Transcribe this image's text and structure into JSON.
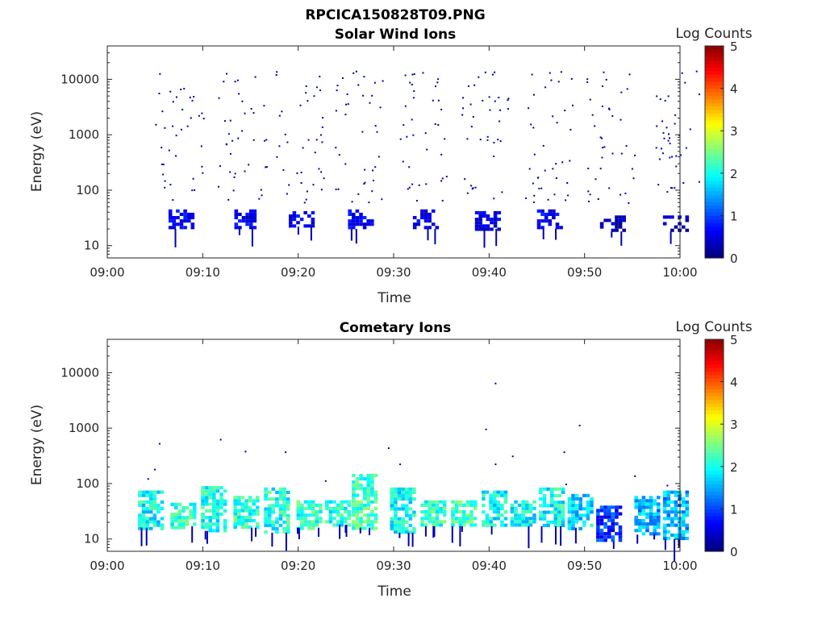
{
  "figure": {
    "title": "RPCICA150828T09.PNG"
  },
  "chart_data": [
    {
      "type": "heatmap",
      "title": "Solar Wind Ions",
      "xlabel": "Time",
      "ylabel": "Energy (eV)",
      "colorbar_label": "Log Counts",
      "x_ticks": [
        "09:00",
        "09:10",
        "09:20",
        "09:30",
        "09:40",
        "09:50",
        "10:00"
      ],
      "y_ticks": [
        "10",
        "100",
        "1000",
        "10000"
      ],
      "y_scale": "log",
      "ylim": [
        6,
        40000
      ],
      "xlim_minutes": [
        0,
        60
      ],
      "clim": [
        0,
        5
      ],
      "cbar_ticks": [
        "0",
        "1",
        "2",
        "3",
        "4",
        "5"
      ],
      "colormap": "jet",
      "scan_minutes": [
        7.6,
        14.1,
        20.2,
        26.4,
        33.2,
        39.7,
        46.2,
        52.8,
        59.4
      ],
      "sweeps": [
        {
          "t": 7.6,
          "lo": 20,
          "hi": 45,
          "lvl": 0.6
        },
        {
          "t": 14.1,
          "lo": 20,
          "hi": 45,
          "lvl": 0.6
        },
        {
          "t": 20.2,
          "lo": 22,
          "hi": 42,
          "lvl": 0.5
        },
        {
          "t": 26.4,
          "lo": 20,
          "hi": 45,
          "lvl": 0.6
        },
        {
          "t": 33.2,
          "lo": 20,
          "hi": 45,
          "lvl": 0.6
        },
        {
          "t": 39.7,
          "lo": 20,
          "hi": 42,
          "lvl": 0.5
        },
        {
          "t": 46.2,
          "lo": 20,
          "hi": 45,
          "lvl": 0.6
        },
        {
          "t": 52.8,
          "lo": 18,
          "hi": 35,
          "lvl": 0.3
        },
        {
          "t": 59.4,
          "lo": 18,
          "hi": 35,
          "lvl": 0.3
        }
      ]
    },
    {
      "type": "heatmap",
      "title": "Cometary Ions",
      "xlabel": "Time",
      "ylabel": "Energy (eV)",
      "colorbar_label": "Log Counts",
      "x_ticks": [
        "09:00",
        "09:10",
        "09:20",
        "09:30",
        "09:40",
        "09:50",
        "10:00"
      ],
      "y_ticks": [
        "10",
        "100",
        "1000",
        "10000"
      ],
      "y_scale": "log",
      "ylim": [
        6,
        40000
      ],
      "xlim_minutes": [
        0,
        60
      ],
      "clim": [
        0,
        5
      ],
      "cbar_ticks": [
        "0",
        "1",
        "2",
        "3",
        "4",
        "5"
      ],
      "colormap": "jet",
      "sweeps": [
        {
          "t": 4.4,
          "lo": 16,
          "hi": 75,
          "lvl": 1.9
        },
        {
          "t": 7.8,
          "lo": 17,
          "hi": 45,
          "lvl": 2.1
        },
        {
          "t": 11.0,
          "lo": 14,
          "hi": 90,
          "lvl": 2.0
        },
        {
          "t": 14.4,
          "lo": 16,
          "hi": 60,
          "lvl": 2.1
        },
        {
          "t": 17.6,
          "lo": 13,
          "hi": 85,
          "lvl": 2.0
        },
        {
          "t": 21.0,
          "lo": 16,
          "hi": 50,
          "lvl": 2.1
        },
        {
          "t": 24.0,
          "lo": 18,
          "hi": 50,
          "lvl": 2.0
        },
        {
          "t": 26.8,
          "lo": 16,
          "hi": 150,
          "lvl": 2.2
        },
        {
          "t": 30.8,
          "lo": 13,
          "hi": 85,
          "lvl": 1.9
        },
        {
          "t": 34.0,
          "lo": 17,
          "hi": 50,
          "lvl": 2.1
        },
        {
          "t": 37.2,
          "lo": 17,
          "hi": 50,
          "lvl": 2.2
        },
        {
          "t": 40.4,
          "lo": 17,
          "hi": 75,
          "lvl": 1.9
        },
        {
          "t": 43.4,
          "lo": 17,
          "hi": 50,
          "lvl": 1.9
        },
        {
          "t": 46.4,
          "lo": 17,
          "hi": 85,
          "lvl": 1.9
        },
        {
          "t": 49.4,
          "lo": 16,
          "hi": 65,
          "lvl": 1.7
        },
        {
          "t": 52.4,
          "lo": 9,
          "hi": 40,
          "lvl": 0.8
        },
        {
          "t": 56.4,
          "lo": 12,
          "hi": 60,
          "lvl": 1.5
        },
        {
          "t": 59.4,
          "lo": 10,
          "hi": 75,
          "lvl": 1.5
        }
      ],
      "scatter": [
        {
          "t": 5.4,
          "e": 540
        },
        {
          "t": 11.8,
          "e": 640
        },
        {
          "t": 14.4,
          "e": 390
        },
        {
          "t": 18.6,
          "e": 380
        },
        {
          "t": 29.4,
          "e": 450
        },
        {
          "t": 30.6,
          "e": 230
        },
        {
          "t": 39.6,
          "e": 980
        },
        {
          "t": 40.6,
          "e": 6600
        },
        {
          "t": 40.6,
          "e": 230
        },
        {
          "t": 42.4,
          "e": 320
        },
        {
          "t": 47.8,
          "e": 380
        },
        {
          "t": 49.4,
          "e": 1150
        },
        {
          "t": 4.9,
          "e": 185
        },
        {
          "t": 4.2,
          "e": 125
        },
        {
          "t": 22.8,
          "e": 115
        },
        {
          "t": 48.0,
          "e": 100
        },
        {
          "t": 55.2,
          "e": 140
        },
        {
          "t": 58.6,
          "e": 95
        }
      ]
    }
  ]
}
